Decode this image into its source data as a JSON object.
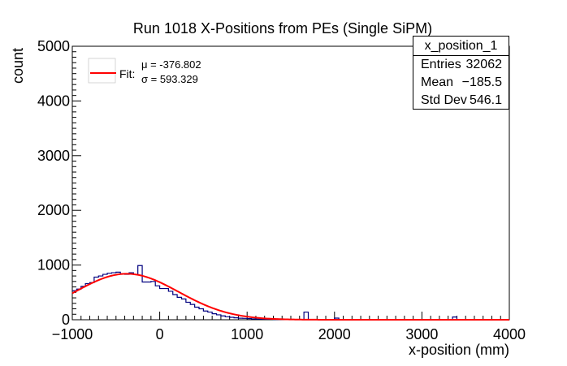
{
  "chart_data": {
    "type": "histogram",
    "title": "Run 1018 X-Positions from PEs (Single SiPM)",
    "xlabel": "x-position (mm)",
    "ylabel": "count",
    "xlim": [
      -1000,
      4000
    ],
    "ylim": [
      0,
      5000
    ],
    "x_ticks": [
      -1000,
      0,
      1000,
      2000,
      3000,
      4000
    ],
    "x_tick_labels": [
      "−1000",
      "0",
      "1000",
      "2000",
      "3000",
      "4000"
    ],
    "y_ticks": [
      0,
      1000,
      2000,
      3000,
      4000,
      5000
    ],
    "y_tick_labels": [
      "0",
      "1000",
      "2000",
      "3000",
      "4000",
      "5000"
    ],
    "grid": false,
    "histogram": {
      "color": "#00007f",
      "bin_width": 50,
      "bins_start": -1000,
      "counts": [
        530,
        560,
        610,
        660,
        680,
        780,
        800,
        830,
        850,
        860,
        870,
        840,
        830,
        860,
        830,
        990,
        690,
        690,
        700,
        620,
        570,
        570,
        520,
        460,
        410,
        380,
        320,
        280,
        230,
        200,
        160,
        140,
        110,
        90,
        70,
        55,
        45,
        35,
        28,
        25,
        20,
        15,
        12,
        10,
        8,
        8,
        6,
        5,
        5,
        6,
        4,
        3,
        2,
        2,
        2,
        2,
        3,
        2,
        2,
        2,
        3,
        2,
        3,
        2,
        3,
        2,
        2,
        2,
        3,
        2,
        2,
        2,
        2,
        2,
        2,
        2,
        2,
        2,
        2,
        2,
        2,
        2,
        2,
        2,
        2,
        2,
        2,
        3,
        2,
        2,
        2,
        2,
        2,
        2,
        2,
        2,
        2,
        2,
        2,
        2
      ],
      "spikes": [
        {
          "x": 1650,
          "value": 140
        },
        {
          "x": 2000,
          "value": 30
        },
        {
          "x": 3350,
          "value": 50
        }
      ]
    },
    "fit": {
      "label": "Fit:",
      "color": "#ff0000",
      "mu_text": "μ = -376.802",
      "sigma_text": "σ = 593.329",
      "mu": -376.802,
      "sigma": 593.329,
      "amplitude": 840
    },
    "stats_box": {
      "name": "x_position_1",
      "rows": [
        {
          "label": "Entries",
          "value": "32062"
        },
        {
          "label": "Mean",
          "value": "−185.5"
        },
        {
          "label": "Std Dev",
          "value": "546.1"
        }
      ]
    }
  }
}
